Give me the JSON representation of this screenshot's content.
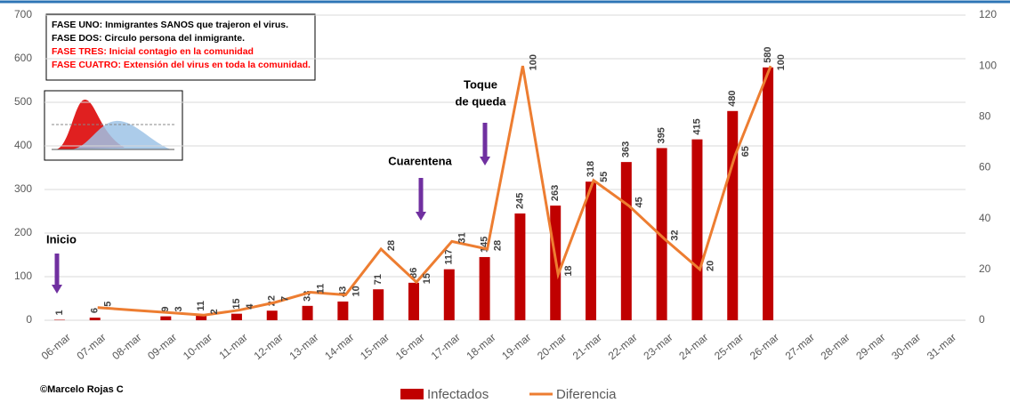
{
  "chart_data": {
    "type": "bar-line",
    "categories": [
      "06-mar",
      "07-mar",
      "08-mar",
      "09-mar",
      "10-mar",
      "11-mar",
      "12-mar",
      "13-mar",
      "14-mar",
      "15-mar",
      "16-mar",
      "17-mar",
      "18-mar",
      "19-mar",
      "20-mar",
      "21-mar",
      "22-mar",
      "23-mar",
      "24-mar",
      "25-mar",
      "26-mar",
      "27-mar",
      "28-mar",
      "29-mar",
      "30-mar",
      "31-mar"
    ],
    "series": [
      {
        "name": "Infectados",
        "color": "#c00000",
        "kind": "bar",
        "values": [
          1,
          6,
          null,
          9,
          11,
          15,
          22,
          33,
          43,
          71,
          86,
          117,
          145,
          245,
          263,
          318,
          363,
          395,
          415,
          480,
          580,
          null,
          null,
          null,
          null,
          null
        ]
      },
      {
        "name": "Diferencia",
        "color": "#ed7d31",
        "kind": "line",
        "axis": "y2",
        "values": [
          null,
          5,
          4,
          3,
          2,
          4,
          7,
          11,
          10,
          28,
          15,
          31,
          28,
          100,
          18,
          55,
          45,
          32,
          20,
          65,
          100,
          null,
          null,
          null,
          null,
          null
        ],
        "value_labels": [
          null,
          "5",
          null,
          "3",
          "2",
          "4",
          "7",
          "11",
          "10",
          "28",
          "15",
          "31",
          "28",
          "100",
          "18",
          "55",
          "45",
          "32",
          "20",
          "65",
          "100",
          null,
          null,
          null,
          null,
          null
        ]
      }
    ],
    "ylim": [
      0,
      700
    ],
    "yticks": [
      0,
      100,
      200,
      300,
      400,
      500,
      600,
      700
    ],
    "y2lim": [
      0,
      120
    ],
    "y2ticks": [
      0,
      20,
      40,
      60,
      80,
      100,
      120
    ],
    "grid": true,
    "annotations": [
      "Inicio",
      "Cuarentena",
      "Toque",
      "de queda"
    ],
    "info_box": [
      {
        "text": "FASE UNO: Inmigrantes SANOS que trajeron el virus.",
        "color": "#000000"
      },
      {
        "text": "FASE DOS: Circulo persona del inmigrante.",
        "color": "#000000"
      },
      {
        "text": "FASE TRES: Inicial contagio en la comunidad",
        "color": "#ff0000"
      },
      {
        "text": "FASE CUATRO: Extensión del virus en toda la comunidad.",
        "color": "#ff0000"
      }
    ],
    "credit": "©Marcelo Rojas C"
  }
}
